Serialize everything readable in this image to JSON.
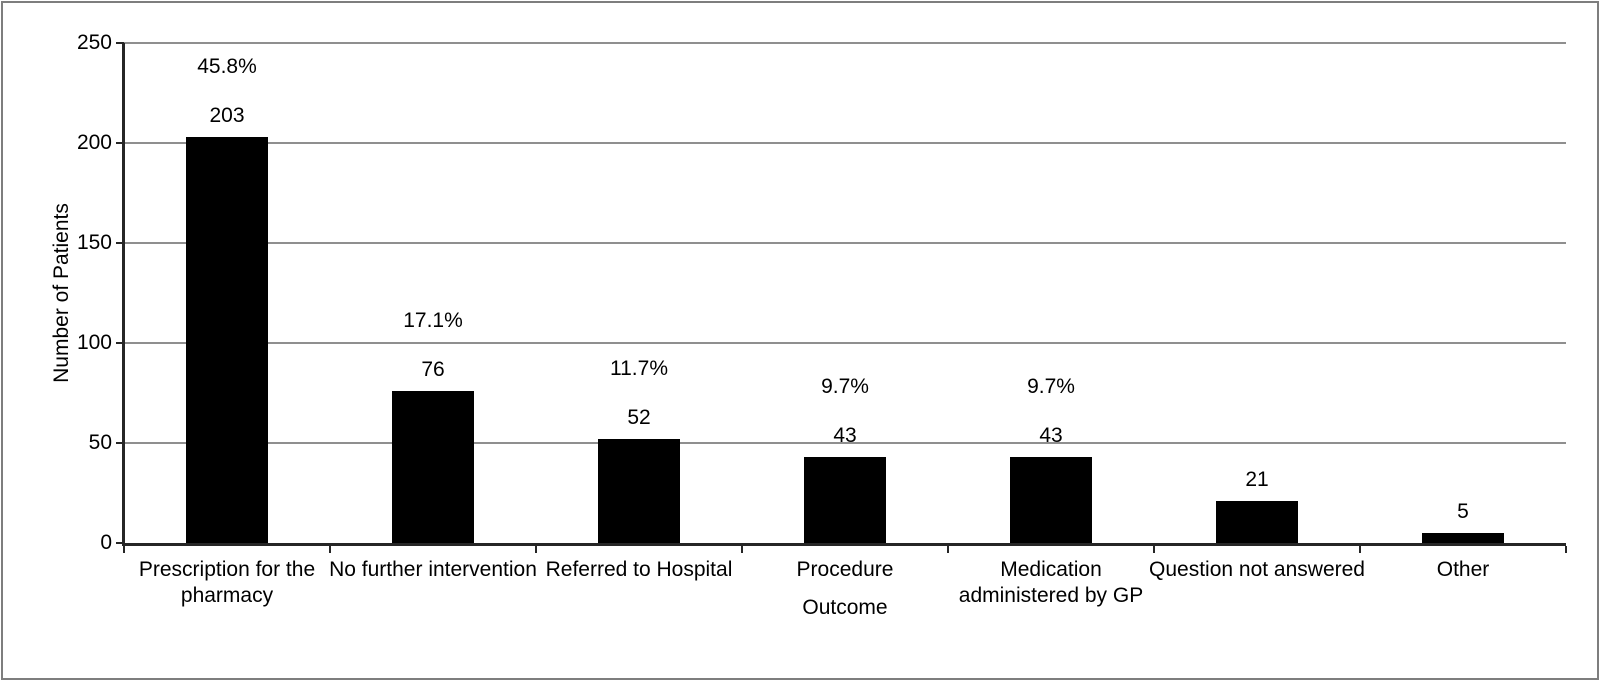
{
  "chart_data": {
    "type": "bar",
    "title": "",
    "xlabel": "Outcome",
    "ylabel": "Number of Patients",
    "categories": [
      "Prescription for the pharmacy",
      "No further intervention",
      "Referred to Hospital",
      "Procedure",
      "Medication administered by GP",
      "Question not answered",
      "Other"
    ],
    "categories_display": [
      "Prescription for the\npharmacy",
      "No further intervention",
      "Referred to Hospital",
      "Procedure",
      "Medication\nadministered by GP",
      "Question not answered",
      "Other"
    ],
    "values": [
      203,
      76,
      52,
      43,
      43,
      21,
      5
    ],
    "percent_labels": [
      "45.8%",
      "17.1%",
      "11.7%",
      "9.7%",
      "9.7%",
      "",
      ""
    ],
    "ylim": [
      0,
      250
    ],
    "yticks": [
      0,
      50,
      100,
      150,
      200,
      250
    ],
    "grid": "horizontal",
    "legend": "none",
    "bar_color": "#000000",
    "gridline_color": "#8f8f8f",
    "axis_color": "#262626",
    "text_color": "#000000",
    "frame_color": "#7e7e7e"
  }
}
